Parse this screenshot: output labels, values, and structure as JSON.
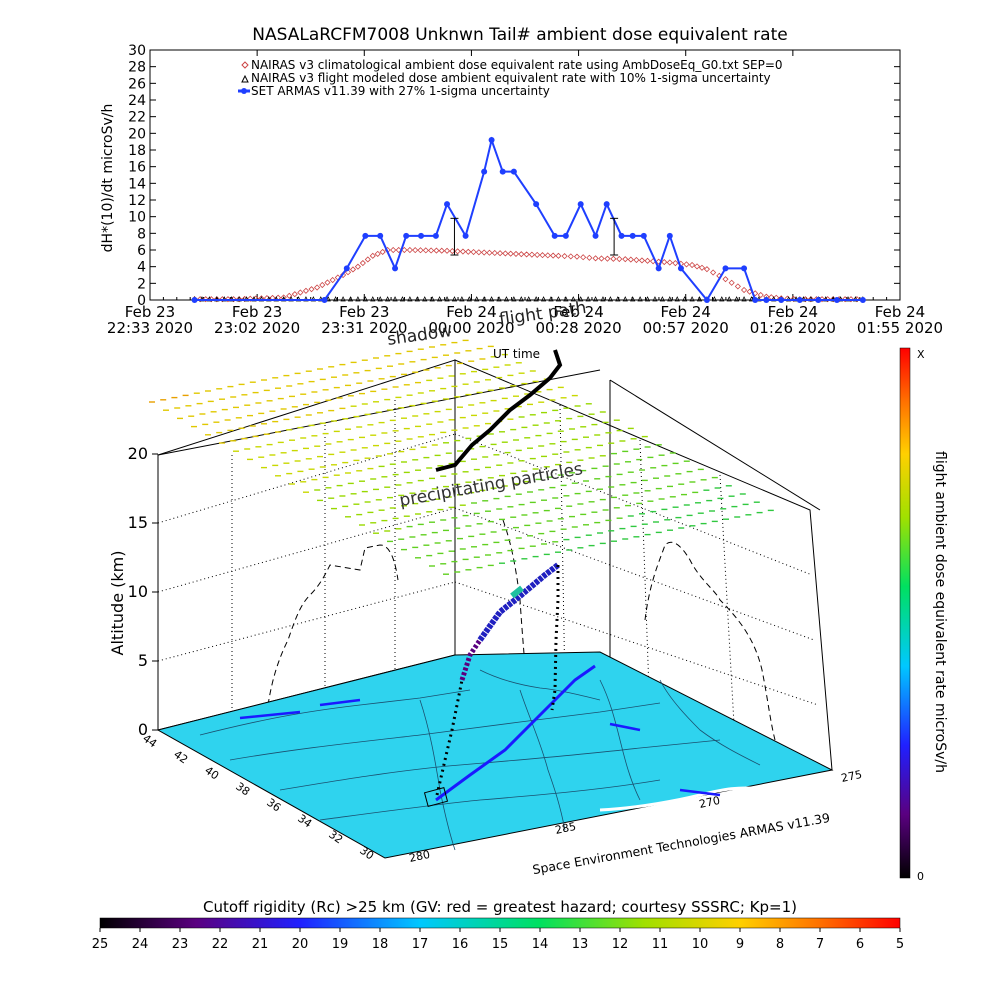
{
  "colors": {
    "nairas_clim": "#cc4444",
    "nairas_flight": "#000000",
    "armas": "#1f3fff",
    "map_fill": "#2fd3ee",
    "ground_line": "#1a1aff"
  },
  "top_chart": {
    "title": "NASALaRCFM7008  Unknwn Tail#  ambient dose equivalent rate",
    "ylabel": "dH*(10)/dt microSv/h",
    "yticks": [
      "0",
      "2",
      "4",
      "6",
      "8",
      "10",
      "12",
      "14",
      "16",
      "18",
      "20",
      "22",
      "24",
      "26",
      "28",
      "30"
    ],
    "xticks": [
      {
        "l1": "Feb 23",
        "l2": "22:33 2020"
      },
      {
        "l1": "Feb 23",
        "l2": "23:02 2020"
      },
      {
        "l1": "Feb 23",
        "l2": "23:31 2020"
      },
      {
        "l1": "Feb 24",
        "l2": "00:00 2020"
      },
      {
        "l1": "Feb 24",
        "l2": "00:28 2020"
      },
      {
        "l1": "Feb 24",
        "l2": "00:57 2020"
      },
      {
        "l1": "Feb 24",
        "l2": "01:26 2020"
      },
      {
        "l1": "Feb 24",
        "l2": "01:55 2020"
      }
    ],
    "legend": [
      "NAIRAS v3 climatological ambient dose equivalent rate using AmbDoseEq_G0.txt SEP=0",
      "NAIRAS v3 flight modeled dose ambient equivalent rate with 10% 1-sigma uncertainty",
      "SET ARMAS v11.39 with 27% 1-sigma uncertainty"
    ]
  },
  "chart_data": [
    {
      "type": "line",
      "title": "NASALaRCFM7008  Unknwn Tail#  ambient dose equivalent rate",
      "xlabel": "",
      "ylabel": "dH*(10)/dt microSv/h",
      "ylim": [
        0,
        30
      ],
      "xlim": [
        "Feb 23 22:33",
        "Feb 24 01:55"
      ],
      "x_unit": "minutes after Feb 23 22:33 2020",
      "series": [
        {
          "name": "NAIRAS v3 climatological ambient dose equivalent rate using AmbDoseEq_G0.txt SEP=0",
          "marker": "diamond",
          "x": [
            12,
            24,
            36,
            45,
            52,
            56,
            60,
            64,
            70,
            80,
            90,
            100,
            110,
            115,
            120,
            128,
            134,
            140,
            146,
            150,
            155,
            160,
            166,
            170,
            175,
            184,
            192
          ],
          "y": [
            0.1,
            0.1,
            0.3,
            1.5,
            3.0,
            4.0,
            5.3,
            6.0,
            6.0,
            5.9,
            5.7,
            5.5,
            5.3,
            5.2,
            5.0,
            4.9,
            4.7,
            4.5,
            4.2,
            3.7,
            2.5,
            1.2,
            0.4,
            0.2,
            0.1,
            0.1,
            0.1
          ]
        },
        {
          "name": "NAIRAS v3 flight modeled dose ambient equivalent rate with 10% 1-sigma uncertainty",
          "marker": "triangle",
          "x": [
            12,
            40,
            80,
            125,
            140,
            192
          ],
          "y": [
            0,
            0,
            0,
            0,
            0,
            0
          ]
        },
        {
          "name": "SET ARMAS v11.39 with 27% 1-sigma uncertainty",
          "marker": "circle",
          "x": [
            12,
            47,
            53,
            58,
            62,
            66,
            69,
            73,
            77,
            80,
            85,
            90,
            92,
            95,
            98,
            104,
            109,
            112,
            116,
            120,
            123,
            127,
            130,
            133,
            137,
            140,
            143,
            150,
            155,
            160,
            163,
            166,
            170,
            175,
            180,
            185,
            192
          ],
          "y": [
            0,
            0,
            3.8,
            7.7,
            7.7,
            3.8,
            7.7,
            7.7,
            7.7,
            11.5,
            7.7,
            15.4,
            19.2,
            15.4,
            15.4,
            11.5,
            7.7,
            7.7,
            11.5,
            7.7,
            11.5,
            7.7,
            7.7,
            7.7,
            3.8,
            7.7,
            3.8,
            0,
            3.8,
            3.8,
            0,
            0,
            0,
            0,
            0,
            0,
            0
          ]
        }
      ]
    },
    {
      "type": "scatter",
      "title": "",
      "zlabel": "Altitude (km)",
      "zticks": [
        "0",
        "5",
        "10",
        "15",
        "20"
      ],
      "latitude_ticks": [
        "44",
        "42",
        "40",
        "38",
        "36",
        "34",
        "32",
        "30"
      ],
      "longitude_ticks": [
        "280",
        "285",
        "270",
        "275"
      ],
      "annotations": [
        "precipitating particles",
        "shadow",
        "flight path",
        "UT time",
        "Space Environment Technologies ARMAS v11.39"
      ],
      "right_colorbar": {
        "label": "flight ambient dose equivalent rate microSv/h",
        "top_label": "X",
        "bottom_label": "0"
      },
      "bottom_colorbar": {
        "label": "Cutoff rigidity (Rc) >25 km (GV: red = greatest hazard; courtesy SSSRC; Kp=1)",
        "ticks": [
          "25",
          "24",
          "23",
          "22",
          "21",
          "20",
          "19",
          "18",
          "17",
          "16",
          "15",
          "14",
          "13",
          "12",
          "11",
          "10",
          "9",
          "8",
          "7",
          "6",
          "5"
        ]
      }
    }
  ],
  "scene": {
    "zlabel": "Altitude (km)",
    "zticks": [
      "0",
      "5",
      "10",
      "15",
      "20"
    ],
    "lat_ticks": [
      "44",
      "42",
      "40",
      "38",
      "36",
      "34",
      "32",
      "30"
    ],
    "lon_ticks": [
      "280",
      "285",
      "270",
      "275"
    ],
    "label_precip": "precipitating particles",
    "label_shadow": "shadow",
    "label_flight": "flight path",
    "label_ut": "UT time",
    "footer_credit": "Space Environment Technologies ARMAS v11.39",
    "right_bar_label": "flight ambient dose equivalent rate microSv/h",
    "right_bar_top": "X",
    "right_bar_bottom": "0"
  },
  "bottom_bar": {
    "title": "Cutoff rigidity (Rc) >25 km (GV: red = greatest hazard; courtesy SSSRC; Kp=1)",
    "ticks": [
      "25",
      "24",
      "23",
      "22",
      "21",
      "20",
      "19",
      "18",
      "17",
      "16",
      "15",
      "14",
      "13",
      "12",
      "11",
      "10",
      "9",
      "8",
      "7",
      "6",
      "5"
    ]
  }
}
